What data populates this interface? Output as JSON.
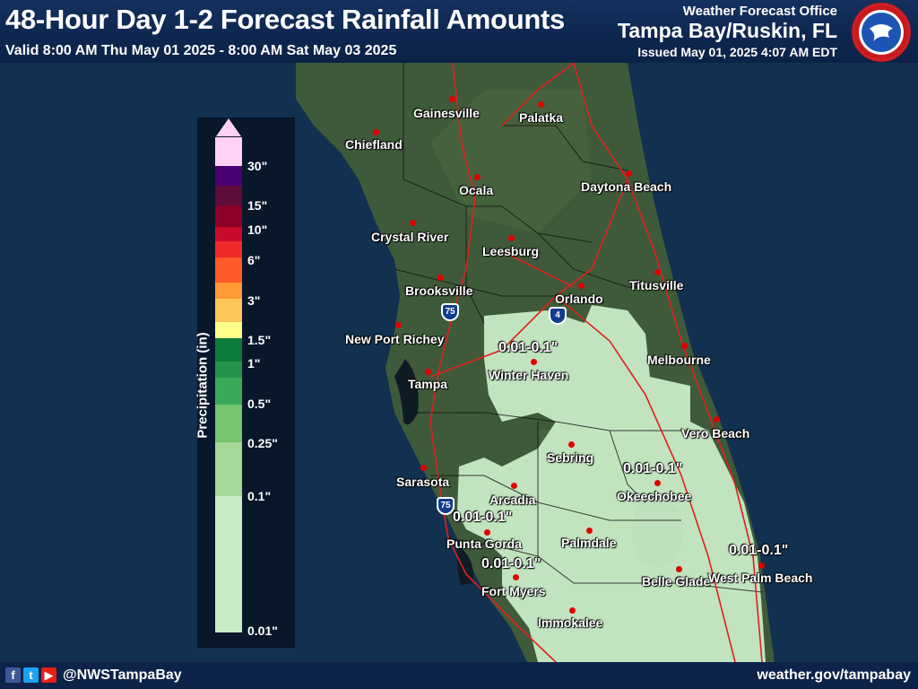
{
  "header": {
    "title": "48-Hour Day 1-2 Forecast Rainfall Amounts",
    "valid": "Valid 8:00 AM Thu May 01 2025 - 8:00 AM Sat May 03 2025",
    "office_label": "Weather Forecast Office",
    "office_name": "Tampa Bay/Ruskin, FL",
    "issued": "Issued May 01, 2025 4:07 AM EDT",
    "logo_icon": "nws-logo-icon"
  },
  "legend": {
    "axis_label": "Precipitation (in)",
    "labels": [
      "30\"",
      "15\"",
      "10\"",
      "6\"",
      "3\"",
      "1.5\"",
      "1\"",
      "0.5\"",
      "0.25\"",
      "0.1\"",
      "0.01\""
    ],
    "colors": {
      "top": "#ffd1f4",
      "c1": "#4b0071",
      "c2": "#5e0c3a",
      "c3": "#8c0028",
      "c4": "#c80a2c",
      "c5": "#f0282a",
      "c6": "#ff5a28",
      "c7": "#ff9a34",
      "c8": "#ffc65a",
      "c9": "#ffff8a",
      "c10": "#0c7a3a",
      "c11": "#25944a",
      "c12": "#3aaa58",
      "c13": "#76c46e",
      "c14": "#a4d898",
      "c15": "#c8ebc6"
    }
  },
  "cities": [
    {
      "name": "Gainesville"
    },
    {
      "name": "Palatka"
    },
    {
      "name": "Chiefland"
    },
    {
      "name": "Ocala"
    },
    {
      "name": "Daytona Beach"
    },
    {
      "name": "Crystal River"
    },
    {
      "name": "Leesburg"
    },
    {
      "name": "Brooksville"
    },
    {
      "name": "Titusville"
    },
    {
      "name": "Orlando"
    },
    {
      "name": "New Port Richey"
    },
    {
      "name": "Melbourne"
    },
    {
      "name": "Winter Haven"
    },
    {
      "name": "Tampa"
    },
    {
      "name": "Vero Beach"
    },
    {
      "name": "Sebring"
    },
    {
      "name": "Sarasota"
    },
    {
      "name": "Arcadia"
    },
    {
      "name": "Okeechobee"
    },
    {
      "name": "Punta Gorda"
    },
    {
      "name": "Palmdale"
    },
    {
      "name": "Fort Myers"
    },
    {
      "name": "Belle Glade"
    },
    {
      "name": "West Palm Beach"
    },
    {
      "name": "Immokalee"
    }
  ],
  "amount_labels": [
    "0.01-0.1\"",
    "0.01-0.1\"",
    "0.01-0.1\"",
    "0.01-0.1\"",
    "0.01-0.1\""
  ],
  "interstate_shields": [
    "75",
    "4",
    "75"
  ],
  "footer": {
    "handle": "@NWSTampaBay",
    "site": "weather.gov/tampabay",
    "icons": [
      "facebook-icon",
      "twitter-icon",
      "youtube-icon"
    ]
  }
}
